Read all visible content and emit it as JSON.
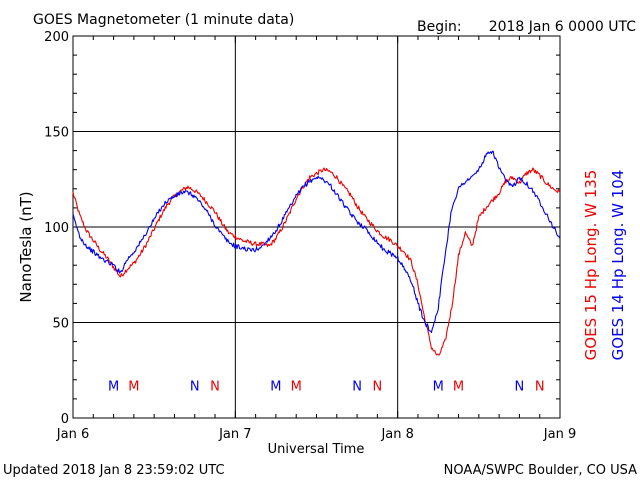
{
  "header": {
    "title": "GOES Magnetometer (1 minute data)",
    "begin_label": "Begin:",
    "begin_value": "2018 Jan 6 0000 UTC"
  },
  "footer": {
    "updated": "Updated 2018 Jan  8 23:59:02 UTC",
    "credit": "NOAA/SWPC Boulder, CO USA"
  },
  "legend": {
    "goes15": "GOES 15 Hp  Long. W 135",
    "goes14": "GOES 14 Hp  Long. W 104"
  },
  "colors": {
    "goes15": "#ee0000",
    "goes14": "#0000ee",
    "grid": "#000000"
  },
  "chart_data": {
    "type": "line",
    "title": "GOES Magnetometer (1 minute data)",
    "xlabel": "Universal Time",
    "ylabel": "NanoTesla (nT)",
    "ylim": [
      0,
      200
    ],
    "xlim_hours": [
      0,
      72
    ],
    "x_ticks": [
      {
        "hour": 0,
        "label": "Jan 6"
      },
      {
        "hour": 24,
        "label": "Jan 7"
      },
      {
        "hour": 48,
        "label": "Jan 8"
      },
      {
        "hour": 72,
        "label": "Jan 9"
      }
    ],
    "y_ticks": [
      0,
      50,
      100,
      150,
      200
    ],
    "grid": true,
    "series": [
      {
        "name": "GOES 15 Hp  Long. W 135",
        "color": "#ee0000",
        "x": [
          0,
          1,
          2,
          3,
          4,
          5,
          6,
          7,
          8,
          9,
          10,
          11,
          12,
          13,
          14,
          15,
          16,
          17,
          18,
          19,
          20,
          21,
          22,
          23,
          24,
          25,
          26,
          27,
          28,
          29,
          30,
          31,
          32,
          33,
          34,
          35,
          36,
          37,
          38,
          39,
          40,
          41,
          42,
          43,
          44,
          45,
          46,
          47,
          48,
          49,
          50,
          51,
          52,
          53,
          54,
          55,
          56,
          57,
          58,
          59,
          60,
          61,
          62,
          63,
          64,
          65,
          66,
          67,
          68,
          69,
          70,
          71,
          72
        ],
        "values": [
          118,
          106,
          98,
          93,
          88,
          84,
          79,
          74,
          78,
          81,
          86,
          92,
          99,
          106,
          112,
          116,
          119,
          121,
          119,
          116,
          112,
          108,
          102,
          97,
          95,
          93,
          92,
          91,
          91,
          90,
          94,
          100,
          107,
          115,
          121,
          126,
          128,
          130,
          129,
          126,
          121,
          117,
          111,
          106,
          102,
          98,
          95,
          93,
          90,
          87,
          82,
          70,
          52,
          37,
          32,
          40,
          58,
          85,
          97,
          90,
          105,
          110,
          114,
          118,
          124,
          126,
          123,
          128,
          130,
          127,
          123,
          120,
          118
        ]
      },
      {
        "name": "GOES 14 Hp  Long. W 104",
        "color": "#0000ee",
        "x": [
          0,
          1,
          2,
          3,
          4,
          5,
          6,
          7,
          8,
          9,
          10,
          11,
          12,
          13,
          14,
          15,
          16,
          17,
          18,
          19,
          20,
          21,
          22,
          23,
          24,
          25,
          26,
          27,
          28,
          29,
          30,
          31,
          32,
          33,
          34,
          35,
          36,
          37,
          38,
          39,
          40,
          41,
          42,
          43,
          44,
          45,
          46,
          47,
          48,
          49,
          50,
          51,
          52,
          53,
          54,
          55,
          56,
          57,
          58,
          59,
          60,
          61,
          62,
          63,
          64,
          65,
          66,
          67,
          68,
          69,
          70,
          71,
          72
        ],
        "values": [
          106,
          95,
          90,
          87,
          84,
          82,
          80,
          76,
          83,
          87,
          92,
          98,
          104,
          110,
          114,
          116,
          118,
          118,
          116,
          112,
          107,
          101,
          96,
          92,
          90,
          89,
          88,
          88,
          90,
          94,
          98,
          104,
          110,
          116,
          121,
          124,
          126,
          125,
          122,
          117,
          112,
          107,
          103,
          100,
          96,
          92,
          88,
          86,
          84,
          78,
          72,
          60,
          50,
          45,
          58,
          85,
          110,
          120,
          124,
          126,
          130,
          137,
          140,
          131,
          124,
          121,
          126,
          123,
          119,
          113,
          107,
          100,
          94
        ]
      }
    ],
    "markers": [
      {
        "hour": 6,
        "label": "M",
        "color": "#0000ee"
      },
      {
        "hour": 9,
        "label": "M",
        "color": "#ee0000"
      },
      {
        "hour": 18,
        "label": "N",
        "color": "#0000ee"
      },
      {
        "hour": 21,
        "label": "N",
        "color": "#ee0000"
      },
      {
        "hour": 30,
        "label": "M",
        "color": "#0000ee"
      },
      {
        "hour": 33,
        "label": "M",
        "color": "#ee0000"
      },
      {
        "hour": 42,
        "label": "N",
        "color": "#0000ee"
      },
      {
        "hour": 45,
        "label": "N",
        "color": "#ee0000"
      },
      {
        "hour": 54,
        "label": "M",
        "color": "#0000ee"
      },
      {
        "hour": 57,
        "label": "M",
        "color": "#ee0000"
      },
      {
        "hour": 66,
        "label": "N",
        "color": "#0000ee"
      },
      {
        "hour": 69,
        "label": "N",
        "color": "#ee0000"
      }
    ],
    "marker_level": 17
  }
}
